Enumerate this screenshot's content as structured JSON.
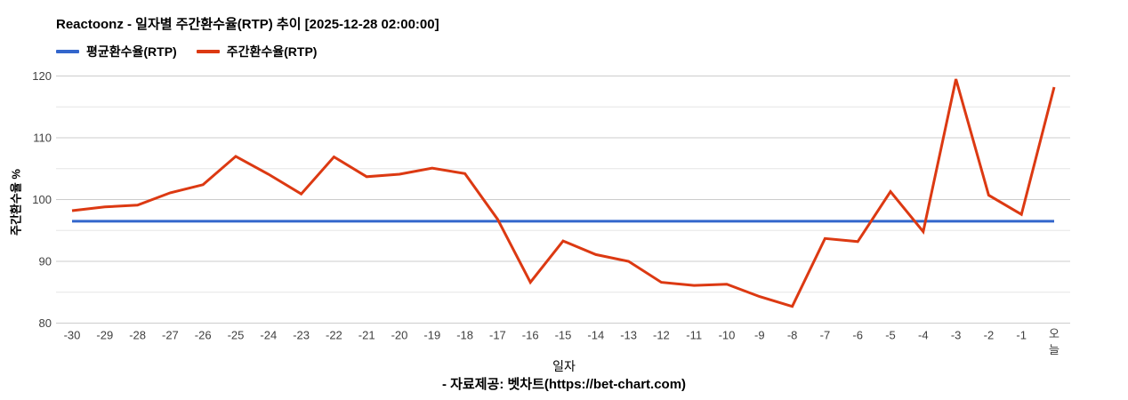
{
  "header": {
    "title": "Reactoonz - 일자별 주간환수율(RTP) 추이 [2025-12-28 02:00:00]"
  },
  "legend": [
    {
      "label": "평균환수율(RTP)",
      "color": "#3366cc"
    },
    {
      "label": "주간환수율(RTP)",
      "color": "#dc3912"
    }
  ],
  "footer": {
    "text": "- 자료제공: 벳차트(https://bet-chart.com)"
  },
  "chart_data": {
    "type": "line",
    "title": "Reactoonz - 일자별 주간환수율(RTP) 추이 [2025-12-28 02:00:00]",
    "xlabel": "일자",
    "ylabel": "주간환수율 %",
    "ylim": [
      80,
      120
    ],
    "y_ticks": [
      80,
      90,
      100,
      110,
      120
    ],
    "y_minor_gridlines": [
      85,
      95,
      105,
      115
    ],
    "grid": true,
    "legend_position": "top-left",
    "categories": [
      "-30",
      "-29",
      "-28",
      "-27",
      "-26",
      "-25",
      "-24",
      "-23",
      "-22",
      "-21",
      "-20",
      "-19",
      "-18",
      "-17",
      "-16",
      "-15",
      "-14",
      "-13",
      "-12",
      "-11",
      "-10",
      "-9",
      "-8",
      "-7",
      "-6",
      "-5",
      "-4",
      "-3",
      "-2",
      "-1",
      "오늘"
    ],
    "series": [
      {
        "name": "평균환수율(RTP)",
        "color": "#3366cc",
        "style": "constant",
        "value": 96.5
      },
      {
        "name": "주간환수율(RTP)",
        "color": "#dc3912",
        "style": "line",
        "values": [
          98.2,
          98.8,
          99.1,
          101.1,
          102.4,
          107.0,
          104.1,
          100.9,
          106.9,
          103.7,
          104.1,
          105.1,
          104.2,
          96.8,
          86.6,
          93.3,
          91.1,
          90.0,
          86.6,
          86.1,
          86.3,
          84.3,
          82.7,
          93.7,
          93.2,
          101.3,
          94.8,
          119.5,
          100.7,
          97.6,
          118.2
        ]
      }
    ],
    "colors": {
      "major_gridline": "#cccccc",
      "minor_gridline": "#e6e6e6",
      "tick_text": "#404040"
    }
  }
}
